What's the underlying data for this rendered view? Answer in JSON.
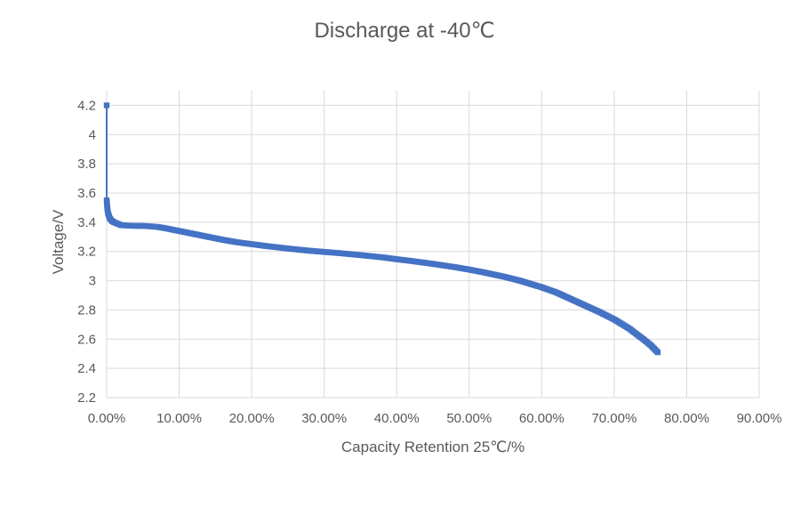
{
  "chart_data": {
    "type": "scatter",
    "title": "Discharge at -40℃",
    "xlabel": "Capacity Retention 25℃/%",
    "ylabel": "Voltage/V",
    "xlim": [
      0,
      0.9
    ],
    "ylim": [
      2.2,
      4.3
    ],
    "x_ticks": [
      0,
      0.1,
      0.2,
      0.3,
      0.4,
      0.5,
      0.6,
      0.7,
      0.8,
      0.9
    ],
    "x_tick_labels": [
      "0.00%",
      "10.00%",
      "20.00%",
      "30.00%",
      "40.00%",
      "50.00%",
      "60.00%",
      "70.00%",
      "80.00%",
      "90.00%"
    ],
    "y_ticks": [
      2.2,
      2.4,
      2.6,
      2.8,
      3.0,
      3.2,
      3.4,
      3.6,
      3.8,
      4.0,
      4.2
    ],
    "y_tick_labels": [
      "2.2",
      "2.4",
      "2.6",
      "2.8",
      "3",
      "3.2",
      "3.4",
      "3.6",
      "3.8",
      "4",
      "4.2"
    ],
    "grid": true,
    "series": [
      {
        "name": "Discharge at -40℃",
        "color": "#4472c4",
        "marker": "square",
        "x": [
          0.0,
          0.0,
          0.0005,
          0.001,
          0.002,
          0.004,
          0.007,
          0.01,
          0.015,
          0.02,
          0.03,
          0.04,
          0.05,
          0.06,
          0.07,
          0.08,
          0.09,
          0.1,
          0.12,
          0.14,
          0.16,
          0.18,
          0.2,
          0.22,
          0.25,
          0.28,
          0.3,
          0.32,
          0.35,
          0.38,
          0.4,
          0.42,
          0.45,
          0.48,
          0.5,
          0.52,
          0.55,
          0.57,
          0.6,
          0.62,
          0.64,
          0.66,
          0.68,
          0.7,
          0.72,
          0.74,
          0.75,
          0.76
        ],
        "y": [
          4.2,
          3.55,
          3.52,
          3.49,
          3.46,
          3.43,
          3.41,
          3.4,
          3.39,
          3.38,
          3.377,
          3.375,
          3.375,
          3.372,
          3.368,
          3.36,
          3.35,
          3.34,
          3.32,
          3.3,
          3.28,
          3.263,
          3.25,
          3.237,
          3.22,
          3.205,
          3.197,
          3.189,
          3.175,
          3.16,
          3.147,
          3.135,
          3.115,
          3.093,
          3.076,
          3.057,
          3.025,
          3.0,
          2.955,
          2.92,
          2.875,
          2.83,
          2.785,
          2.735,
          2.675,
          2.6,
          2.56,
          2.51
        ]
      }
    ]
  }
}
